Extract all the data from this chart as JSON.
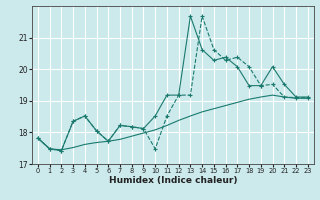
{
  "title": "",
  "xlabel": "Humidex (Indice chaleur)",
  "xlim": [
    -0.5,
    23.5
  ],
  "ylim": [
    17,
    22
  ],
  "yticks": [
    17,
    18,
    19,
    20,
    21
  ],
  "xticks": [
    0,
    1,
    2,
    3,
    4,
    5,
    6,
    7,
    8,
    9,
    10,
    11,
    12,
    13,
    14,
    15,
    16,
    17,
    18,
    19,
    20,
    21,
    22,
    23
  ],
  "bg_color": "#cce9ec",
  "grid_color": "#ffffff",
  "line_color": "#1a7a6e",
  "series1_dashed": {
    "x": [
      0,
      1,
      2,
      3,
      4,
      5,
      6,
      7,
      8,
      9,
      10,
      11,
      12,
      13,
      14,
      15,
      16,
      17,
      18,
      19,
      20,
      21,
      22,
      23
    ],
    "y": [
      17.82,
      17.48,
      17.42,
      18.35,
      18.52,
      18.05,
      17.72,
      18.22,
      18.18,
      18.12,
      17.48,
      18.52,
      19.18,
      19.18,
      21.68,
      20.62,
      20.28,
      20.38,
      20.08,
      19.48,
      19.52,
      19.12,
      19.1,
      19.1
    ]
  },
  "series2_solid_markers": {
    "x": [
      0,
      1,
      2,
      3,
      4,
      5,
      6,
      7,
      8,
      9,
      10,
      11,
      12,
      13,
      14,
      15,
      16,
      17,
      18,
      19,
      20,
      21,
      22,
      23
    ],
    "y": [
      17.82,
      17.48,
      17.42,
      18.35,
      18.52,
      18.05,
      17.72,
      18.22,
      18.18,
      18.12,
      18.52,
      19.18,
      19.18,
      21.68,
      20.62,
      20.28,
      20.38,
      20.08,
      19.48,
      19.48,
      20.08,
      19.52,
      19.12,
      19.12
    ]
  },
  "series3_smooth": {
    "x": [
      0,
      1,
      2,
      3,
      4,
      5,
      6,
      7,
      8,
      9,
      10,
      11,
      12,
      13,
      14,
      15,
      16,
      17,
      18,
      19,
      20,
      21,
      22,
      23
    ],
    "y": [
      17.82,
      17.48,
      17.45,
      17.52,
      17.62,
      17.68,
      17.72,
      17.78,
      17.88,
      17.98,
      18.08,
      18.22,
      18.38,
      18.52,
      18.65,
      18.75,
      18.85,
      18.95,
      19.05,
      19.12,
      19.18,
      19.12,
      19.08,
      19.08
    ]
  },
  "xtick_fontsize": 4.8,
  "ytick_fontsize": 5.5,
  "xlabel_fontsize": 6.5
}
